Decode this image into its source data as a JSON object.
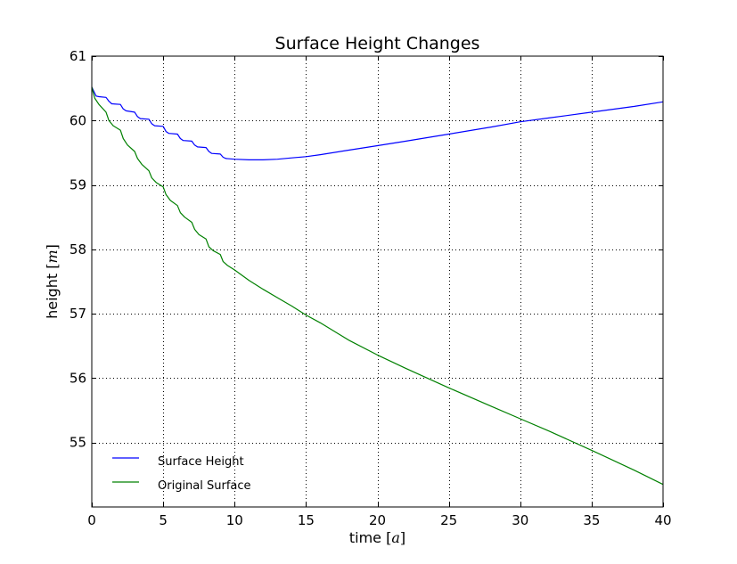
{
  "chart_data": {
    "type": "line",
    "title": "Surface Height Changes",
    "xlabel": "time",
    "xlabel_unit": "a",
    "ylabel": "height",
    "ylabel_unit": "m",
    "xlim": [
      0,
      40
    ],
    "ylim": [
      54,
      61
    ],
    "xticks": [
      0,
      5,
      10,
      15,
      20,
      25,
      30,
      35,
      40
    ],
    "yticks": [
      55,
      56,
      57,
      58,
      59,
      60,
      61
    ],
    "grid": true,
    "legend_position": "bottom-left",
    "series": [
      {
        "name": "Surface Height",
        "color": "#0000ff",
        "x": [
          0,
          0.3,
          0.5,
          1.0,
          1.2,
          1.4,
          2.0,
          2.2,
          2.4,
          3.0,
          3.2,
          3.4,
          4.0,
          4.2,
          4.4,
          5.0,
          5.2,
          5.4,
          6.0,
          6.2,
          6.4,
          7.0,
          7.2,
          7.4,
          8.0,
          8.2,
          8.4,
          9.0,
          9.2,
          9.4,
          10,
          11,
          12,
          13,
          14,
          15,
          16,
          18,
          20,
          22,
          25,
          28,
          30,
          32,
          35,
          38,
          40
        ],
        "values": [
          60.52,
          60.38,
          60.37,
          60.36,
          60.3,
          60.26,
          60.25,
          60.18,
          60.15,
          60.13,
          60.06,
          60.03,
          60.02,
          59.95,
          59.92,
          59.91,
          59.83,
          59.8,
          59.79,
          59.72,
          59.69,
          59.68,
          59.62,
          59.59,
          59.58,
          59.52,
          59.49,
          59.48,
          59.43,
          59.41,
          59.4,
          59.39,
          59.39,
          59.4,
          59.42,
          59.44,
          59.47,
          59.54,
          59.61,
          59.68,
          59.79,
          59.9,
          59.98,
          60.04,
          60.13,
          60.22,
          60.29
        ]
      },
      {
        "name": "Original Surface",
        "color": "#008000",
        "x": [
          0,
          0.2,
          0.5,
          1.0,
          1.2,
          1.5,
          2.0,
          2.2,
          2.5,
          3.0,
          3.2,
          3.5,
          4.0,
          4.2,
          4.5,
          5.0,
          5.2,
          5.5,
          6.0,
          6.2,
          6.5,
          7.0,
          7.2,
          7.5,
          8.0,
          8.2,
          8.5,
          9.0,
          9.2,
          9.5,
          10,
          11,
          12,
          13,
          14,
          15,
          16,
          18,
          20,
          22,
          25,
          28,
          30,
          32,
          35,
          38,
          40
        ],
        "values": [
          60.52,
          60.35,
          60.25,
          60.13,
          60.0,
          59.92,
          59.85,
          59.72,
          59.62,
          59.52,
          59.41,
          59.32,
          59.22,
          59.11,
          59.04,
          58.97,
          58.85,
          58.76,
          58.68,
          58.57,
          58.5,
          58.42,
          58.31,
          58.23,
          58.16,
          58.04,
          57.98,
          57.92,
          57.81,
          57.75,
          57.68,
          57.52,
          57.38,
          57.25,
          57.12,
          56.98,
          56.86,
          56.59,
          56.36,
          56.15,
          55.85,
          55.56,
          55.37,
          55.18,
          54.88,
          54.57,
          54.35
        ]
      }
    ]
  }
}
